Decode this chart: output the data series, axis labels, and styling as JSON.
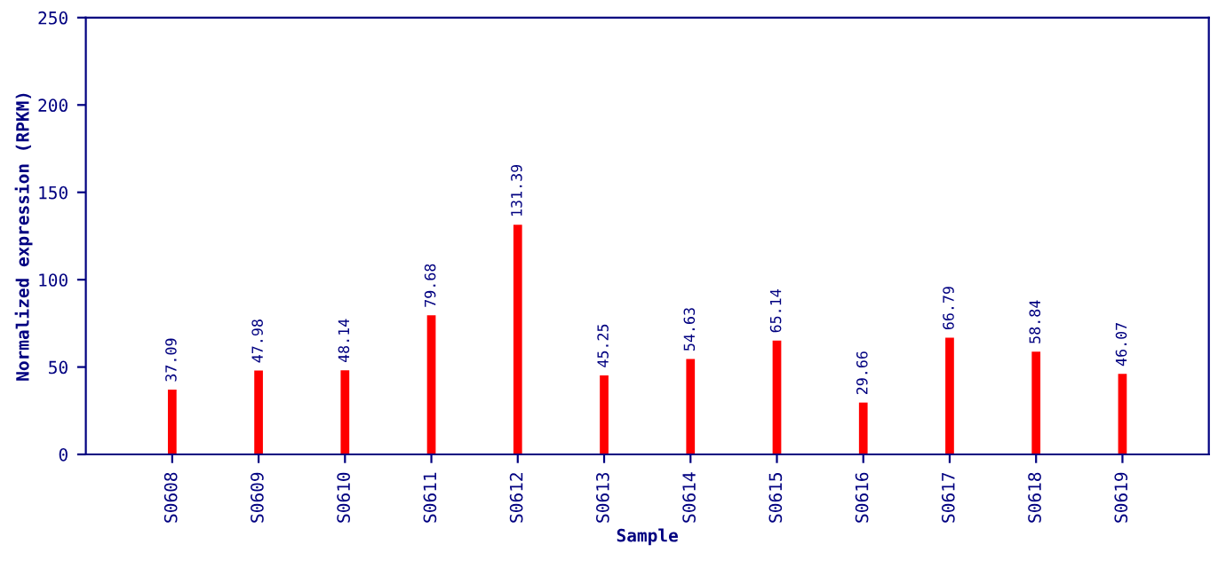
{
  "chart_data": {
    "type": "bar",
    "xlabel": "Sample",
    "ylabel": "Normalized expression (RPKM)",
    "categories": [
      "S0608",
      "S0609",
      "S0610",
      "S0611",
      "S0612",
      "S0613",
      "S0614",
      "S0615",
      "S0616",
      "S0617",
      "S0618",
      "S0619"
    ],
    "values": [
      37.09,
      47.98,
      48.14,
      79.68,
      131.39,
      45.25,
      54.63,
      65.14,
      29.66,
      66.79,
      58.84,
      46.07
    ],
    "color": "#ff0000",
    "ylim": [
      0,
      250
    ],
    "yticks": [
      0,
      50,
      100,
      150,
      200,
      250
    ],
    "data_labels": true,
    "grid": false,
    "legend": false
  }
}
